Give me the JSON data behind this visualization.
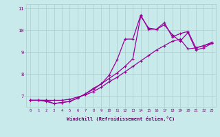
{
  "xlabel": "Windchill (Refroidissement éolien,°C)",
  "bg_color": "#c8eaea",
  "line_color": "#990099",
  "grid_color": "#aacccc",
  "axis_color": "#660066",
  "x_ticks": [
    0,
    1,
    2,
    3,
    4,
    5,
    6,
    7,
    8,
    9,
    10,
    11,
    12,
    13,
    14,
    15,
    16,
    17,
    18,
    19,
    20,
    21,
    22,
    23
  ],
  "ylim": [
    6.5,
    11.2
  ],
  "xlim": [
    -0.5,
    23.5
  ],
  "yticks": [
    7,
    8,
    9,
    10,
    11
  ],
  "series1_x": [
    0,
    1,
    2,
    3,
    4,
    5,
    6,
    7,
    8,
    9,
    10,
    11,
    12,
    13,
    14,
    15,
    16,
    17,
    18,
    19,
    20,
    21,
    22,
    23
  ],
  "series1_y": [
    6.8,
    6.8,
    6.8,
    6.8,
    6.8,
    6.85,
    6.95,
    7.05,
    7.2,
    7.4,
    7.65,
    7.85,
    8.1,
    8.35,
    8.6,
    8.85,
    9.1,
    9.3,
    9.5,
    9.6,
    9.15,
    9.2,
    9.3,
    9.4
  ],
  "series2_x": [
    0,
    1,
    2,
    3,
    4,
    5,
    6,
    7,
    8,
    9,
    10,
    11,
    12,
    13,
    14,
    15,
    16,
    17,
    18,
    19,
    20,
    21,
    22,
    23
  ],
  "series2_y": [
    6.8,
    6.8,
    6.8,
    6.65,
    6.7,
    6.75,
    6.9,
    7.1,
    7.3,
    7.55,
    7.8,
    8.05,
    8.35,
    8.7,
    10.65,
    10.1,
    10.05,
    10.35,
    9.7,
    9.85,
    9.95,
    9.2,
    9.3,
    9.45
  ],
  "series3_x": [
    0,
    1,
    2,
    3,
    4,
    5,
    6,
    7,
    8,
    9,
    10,
    11,
    12,
    13,
    14,
    15,
    16,
    17,
    18,
    19,
    20,
    21,
    22,
    23
  ],
  "series3_y": [
    6.8,
    6.8,
    6.75,
    6.65,
    6.7,
    6.75,
    6.9,
    7.1,
    7.35,
    7.55,
    7.95,
    8.65,
    9.6,
    9.6,
    10.7,
    10.05,
    10.05,
    10.25,
    9.8,
    9.5,
    9.9,
    9.1,
    9.2,
    9.4
  ]
}
